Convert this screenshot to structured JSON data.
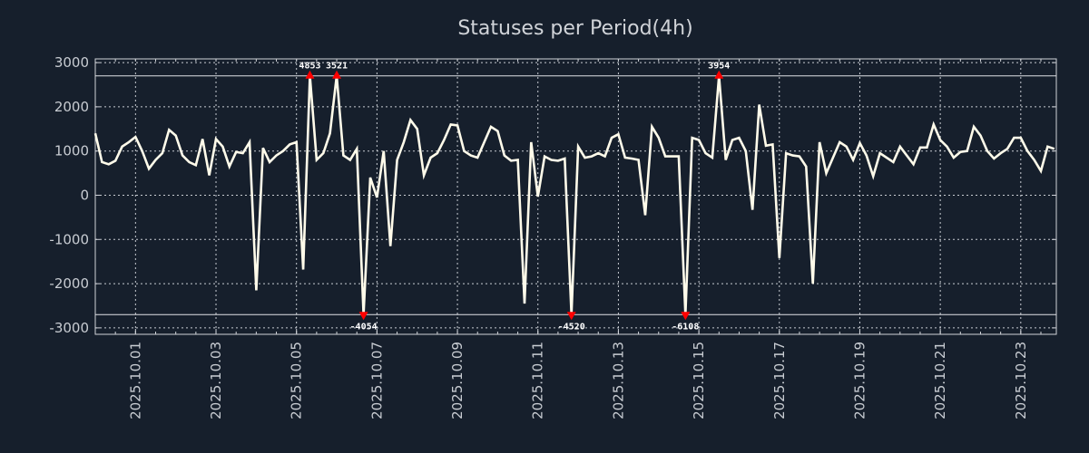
{
  "chart_data": {
    "type": "line",
    "title": "Statuses per Period(4h)",
    "xlabel": "",
    "ylabel": "",
    "x_start": "2025-09-30 00:00",
    "x_step_hours": 4,
    "ylim": [
      -3100,
      3100
    ],
    "clip_range": [
      -2700,
      2700
    ],
    "yticks": [
      3000,
      2000,
      1000,
      0,
      -1000,
      -2000,
      -3000
    ],
    "ytick_labels": [
      "3000",
      "2000",
      "1000",
      "0",
      "-1000",
      "-2000",
      "-3000"
    ],
    "xtick_labels": [
      "2025.10.01",
      "2025.10.03",
      "2025.10.05",
      "2025.10.07",
      "2025.10.09",
      "2025.10.11",
      "2025.10.13",
      "2025.10.15",
      "2025.10.17",
      "2025.10.19",
      "2025.10.21",
      "2025.10.23"
    ],
    "grid": true,
    "line_color": "#fffbea",
    "marker_color": "#ff0000",
    "background": "#161f2c",
    "values": [
      1400,
      750,
      700,
      780,
      1100,
      1200,
      1320,
      1000,
      600,
      800,
      950,
      1480,
      1350,
      900,
      750,
      680,
      1270,
      450,
      1270,
      1100,
      650,
      980,
      950,
      1200,
      -2150,
      1070,
      750,
      900,
      1000,
      1150,
      1200,
      -1680,
      4853,
      800,
      950,
      1400,
      3521,
      900,
      800,
      1050,
      -4054,
      400,
      -50,
      1000,
      -1150,
      800,
      1200,
      1700,
      1500,
      450,
      850,
      950,
      1250,
      1600,
      1580,
      1000,
      900,
      850,
      1200,
      1550,
      1450,
      900,
      780,
      800,
      -2450,
      1200,
      -30,
      880,
      800,
      780,
      830,
      -4520,
      1100,
      850,
      880,
      950,
      880,
      1300,
      1380,
      850,
      830,
      800,
      -450,
      1550,
      1300,
      880,
      880,
      880,
      -6108,
      1300,
      1250,
      950,
      850,
      3954,
      800,
      1250,
      1300,
      1000,
      -330,
      2050,
      1120,
      1150,
      -1420,
      950,
      900,
      880,
      650,
      -2000,
      1200,
      500,
      850,
      1200,
      1100,
      800,
      1180,
      900,
      430,
      950,
      850,
      750,
      1100,
      900,
      700,
      1080,
      1080,
      1600,
      1250,
      1100,
      850,
      980,
      1000,
      1550,
      1350,
      1000,
      830,
      950,
      1050,
      1300,
      1300,
      1000,
      800,
      550,
      1100,
      1050
    ],
    "annotations": [
      {
        "label": "4853",
        "value": 4853,
        "kind": "max"
      },
      {
        "label": "3521",
        "value": 3521,
        "kind": "max"
      },
      {
        "label": "-4054",
        "value": -4054,
        "kind": "min"
      },
      {
        "label": "-4520",
        "value": -4520,
        "kind": "min"
      },
      {
        "label": "-6108",
        "value": -6108,
        "kind": "min"
      },
      {
        "label": "3954",
        "value": 3954,
        "kind": "max"
      }
    ]
  }
}
